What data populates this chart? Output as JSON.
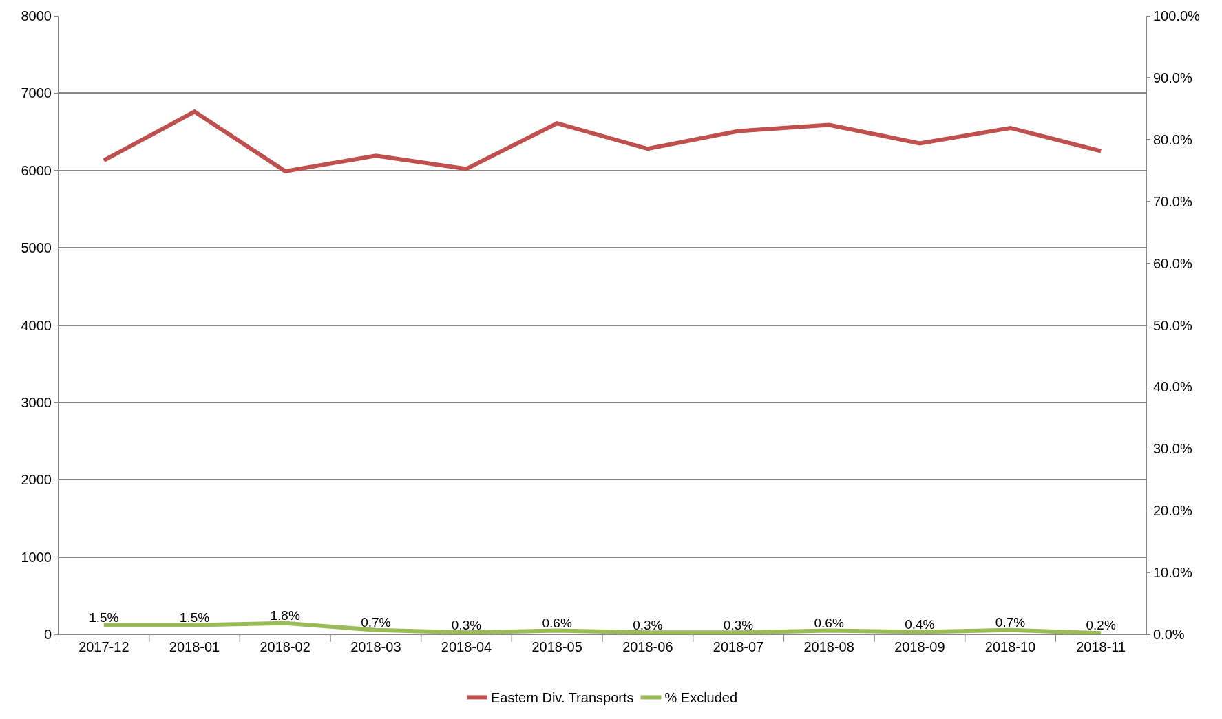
{
  "chart_data": {
    "type": "line",
    "categories": [
      "2017-12",
      "2018-01",
      "2018-02",
      "2018-03",
      "2018-04",
      "2018-05",
      "2018-06",
      "2018-07",
      "2018-08",
      "2018-09",
      "2018-10",
      "2018-11"
    ],
    "series": [
      {
        "name": "Eastern Div. Transports",
        "color": "#c0504d",
        "values": [
          6130,
          6760,
          5990,
          6190,
          6020,
          6610,
          6280,
          6510,
          6590,
          6350,
          6550,
          6250
        ]
      },
      {
        "name": "% Excluded",
        "color": "#9bbb59",
        "axis": "y2",
        "values": [
          1.5,
          1.5,
          1.8,
          0.7,
          0.3,
          0.6,
          0.3,
          0.3,
          0.6,
          0.4,
          0.7,
          0.2
        ],
        "value_labels": [
          "1.5%",
          "1.5%",
          "1.8%",
          "0.7%",
          "0.3%",
          "0.6%",
          "0.3%",
          "0.3%",
          "0.6%",
          "0.4%",
          "0.7%",
          "0.2%"
        ]
      }
    ],
    "ylim": [
      0,
      8000
    ],
    "yticks": [
      0,
      1000,
      2000,
      3000,
      4000,
      5000,
      6000,
      7000,
      8000
    ],
    "y2lim": [
      0,
      100
    ],
    "y2ticks": [
      {
        "value": 0,
        "label": "0.0%"
      },
      {
        "value": 10,
        "label": "10.0%"
      },
      {
        "value": 20,
        "label": "20.0%"
      },
      {
        "value": 30,
        "label": "30.0%"
      },
      {
        "value": 40,
        "label": "40.0%"
      },
      {
        "value": 50,
        "label": "50.0%"
      },
      {
        "value": 60,
        "label": "60.0%"
      },
      {
        "value": 70,
        "label": "70.0%"
      },
      {
        "value": 80,
        "label": "80.0%"
      },
      {
        "value": 90,
        "label": "90.0%"
      },
      {
        "value": 100,
        "label": "100.0%"
      }
    ],
    "grid": "y",
    "legend": "bottom",
    "marker": "none",
    "line_style": "solid"
  }
}
